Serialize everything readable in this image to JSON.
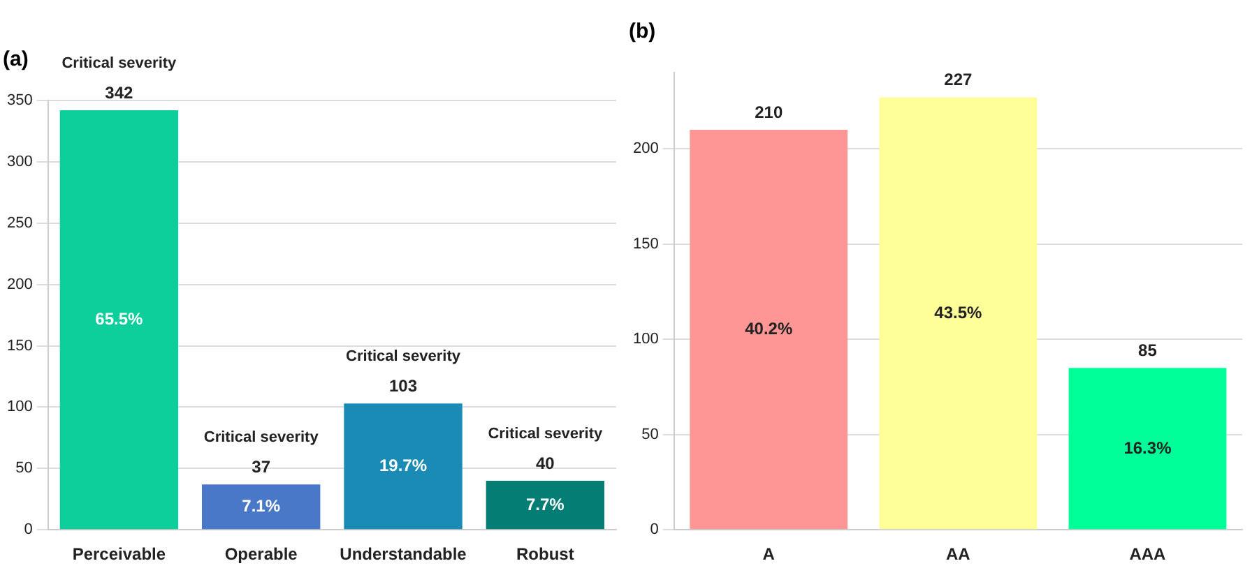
{
  "chart_data": [
    {
      "type": "bar",
      "title": "(a)",
      "categories": [
        "Perceivable",
        "Operable",
        "Understandable",
        "Robust"
      ],
      "values": [
        342,
        37,
        103,
        40
      ],
      "colors": [
        "#0ccf9c",
        "#4a78c8",
        "#1a8bb5",
        "#047e75"
      ],
      "ylim": [
        0,
        350
      ],
      "yticks": [
        0,
        50,
        100,
        150,
        200,
        250,
        300,
        350
      ],
      "grid": "y",
      "data_labels": true,
      "annotations": [
        {
          "text": "Critical severity",
          "x": "Perceivable",
          "y": 342
        },
        {
          "text": "Critical severity",
          "x": "Operable",
          "y": 37
        },
        {
          "text": "Critical severity",
          "x": "Understandable",
          "y": 103
        },
        {
          "text": "Critical severity",
          "x": "Robust",
          "y": 40
        },
        "65.5%",
        "7.1%",
        "19.7%",
        "7.7%"
      ]
    },
    {
      "type": "bar",
      "title": "(b)",
      "categories": [
        "A",
        "AA",
        "AAA"
      ],
      "values": [
        210,
        227,
        85
      ],
      "colors": [
        "#fe9696",
        "#ffff99",
        "#00ff99"
      ],
      "ylim": [
        0,
        240
      ],
      "yticks": [
        0,
        50,
        100,
        150,
        200
      ],
      "grid": "y",
      "data_labels": true,
      "annotations": [
        "40.2%",
        "43.5%",
        "16.3%"
      ]
    }
  ]
}
